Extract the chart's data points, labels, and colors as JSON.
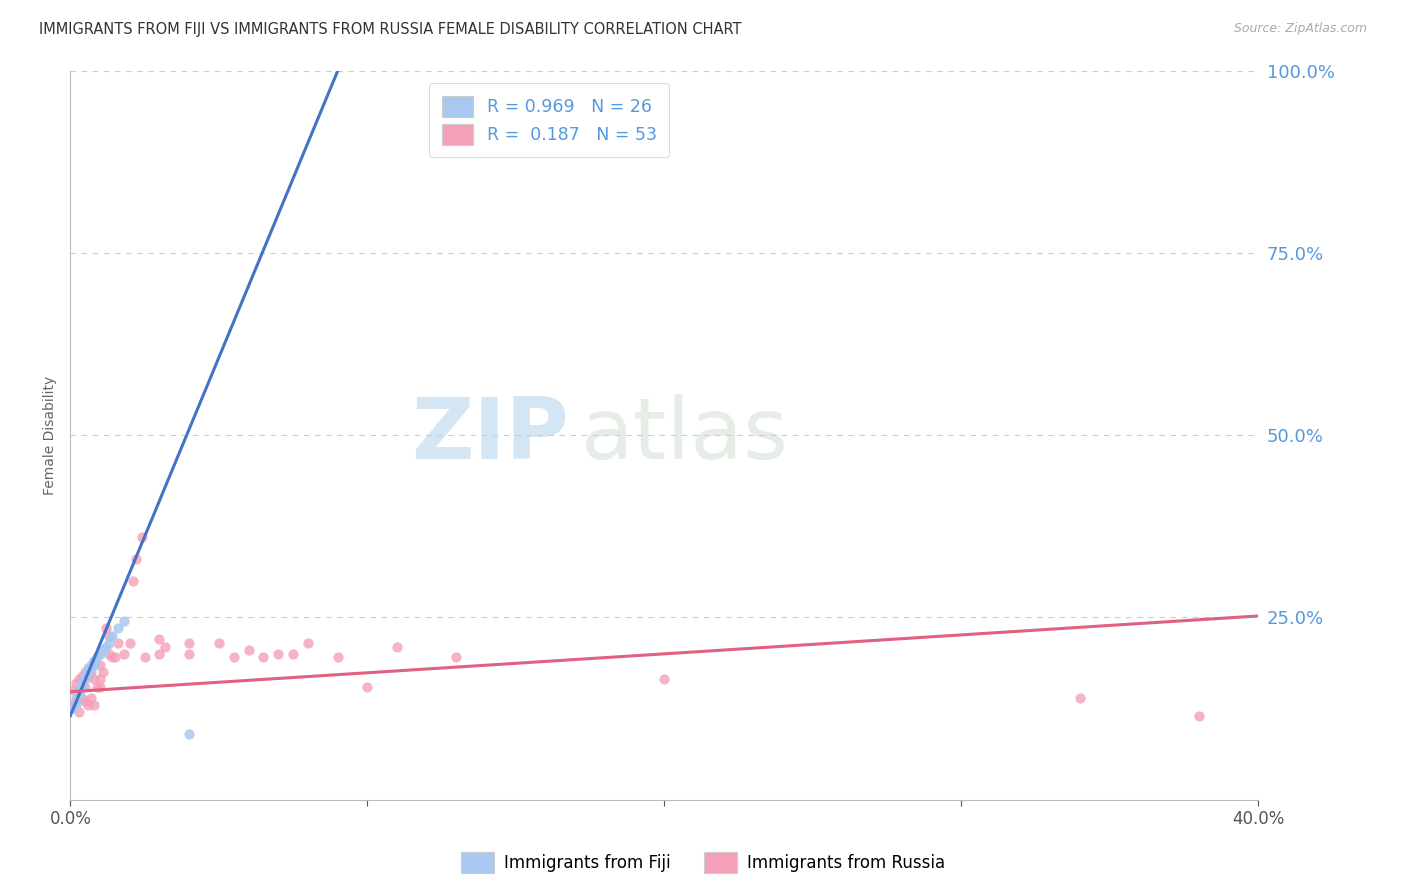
{
  "title": "IMMIGRANTS FROM FIJI VS IMMIGRANTS FROM RUSSIA FEMALE DISABILITY CORRELATION CHART",
  "source": "Source: ZipAtlas.com",
  "ylabel": "Female Disability",
  "fiji_color": "#a8c8f0",
  "fiji_edge_color": "#a8c8f0",
  "fiji_line_color": "#4472c4",
  "russia_color": "#f4a0b8",
  "russia_edge_color": "#f4a0b8",
  "russia_line_color": "#e06080",
  "fiji_R": 0.969,
  "fiji_N": 26,
  "russia_R": 0.187,
  "russia_N": 53,
  "legend_fiji": "Immigrants from Fiji",
  "legend_russia": "Immigrants from Russia",
  "watermark_zip": "ZIP",
  "watermark_atlas": "atlas",
  "background_color": "#ffffff",
  "grid_color": "#cccccc",
  "title_color": "#333333",
  "axis_color": "#6699cc",
  "right_tick_color": "#5599dd",
  "marker_size": 55,
  "xlim": [
    0.0,
    0.4
  ],
  "ylim": [
    0.0,
    1.0
  ],
  "y_ticks": [
    0.0,
    0.25,
    0.5,
    0.75,
    1.0
  ],
  "y_tick_labels_right": [
    "",
    "25.0%",
    "50.0%",
    "75.0%",
    "100.0%"
  ],
  "x_ticks": [
    0.0,
    0.1,
    0.2,
    0.3,
    0.4
  ],
  "x_tick_labels": [
    "0.0%",
    "",
    "",
    "",
    "40.0%"
  ],
  "fiji_x": [
    0.001,
    0.002,
    0.002,
    0.003,
    0.003,
    0.004,
    0.004,
    0.005,
    0.005,
    0.006,
    0.006,
    0.006,
    0.007,
    0.007,
    0.008,
    0.008,
    0.008,
    0.009,
    0.01,
    0.011,
    0.012,
    0.013,
    0.014,
    0.016,
    0.018,
    0.04
  ],
  "fiji_y": [
    0.125,
    0.13,
    0.14,
    0.145,
    0.15,
    0.155,
    0.16,
    0.165,
    0.17,
    0.175,
    0.175,
    0.18,
    0.18,
    0.185,
    0.185,
    0.19,
    0.19,
    0.195,
    0.2,
    0.205,
    0.21,
    0.215,
    0.225,
    0.235,
    0.245,
    0.09
  ],
  "russia_x": [
    0.001,
    0.001,
    0.002,
    0.002,
    0.003,
    0.003,
    0.004,
    0.004,
    0.005,
    0.005,
    0.005,
    0.006,
    0.006,
    0.007,
    0.007,
    0.008,
    0.008,
    0.009,
    0.01,
    0.01,
    0.01,
    0.011,
    0.012,
    0.013,
    0.013,
    0.014,
    0.015,
    0.016,
    0.018,
    0.02,
    0.021,
    0.022,
    0.024,
    0.025,
    0.03,
    0.03,
    0.032,
    0.04,
    0.04,
    0.05,
    0.055,
    0.06,
    0.065,
    0.07,
    0.075,
    0.08,
    0.09,
    0.1,
    0.11,
    0.13,
    0.2,
    0.34,
    0.38
  ],
  "russia_y": [
    0.13,
    0.15,
    0.135,
    0.16,
    0.12,
    0.165,
    0.14,
    0.17,
    0.135,
    0.155,
    0.175,
    0.13,
    0.17,
    0.14,
    0.175,
    0.13,
    0.165,
    0.155,
    0.155,
    0.165,
    0.185,
    0.175,
    0.235,
    0.2,
    0.225,
    0.195,
    0.195,
    0.215,
    0.2,
    0.215,
    0.3,
    0.33,
    0.36,
    0.195,
    0.2,
    0.22,
    0.21,
    0.2,
    0.215,
    0.215,
    0.195,
    0.205,
    0.195,
    0.2,
    0.2,
    0.215,
    0.195,
    0.155,
    0.21,
    0.195,
    0.165,
    0.14,
    0.115
  ],
  "fiji_line_x": [
    0.0,
    0.09
  ],
  "fiji_line_y": [
    0.115,
    1.0
  ],
  "russia_line_x": [
    0.0,
    0.4
  ],
  "russia_line_y": [
    0.148,
    0.252
  ]
}
